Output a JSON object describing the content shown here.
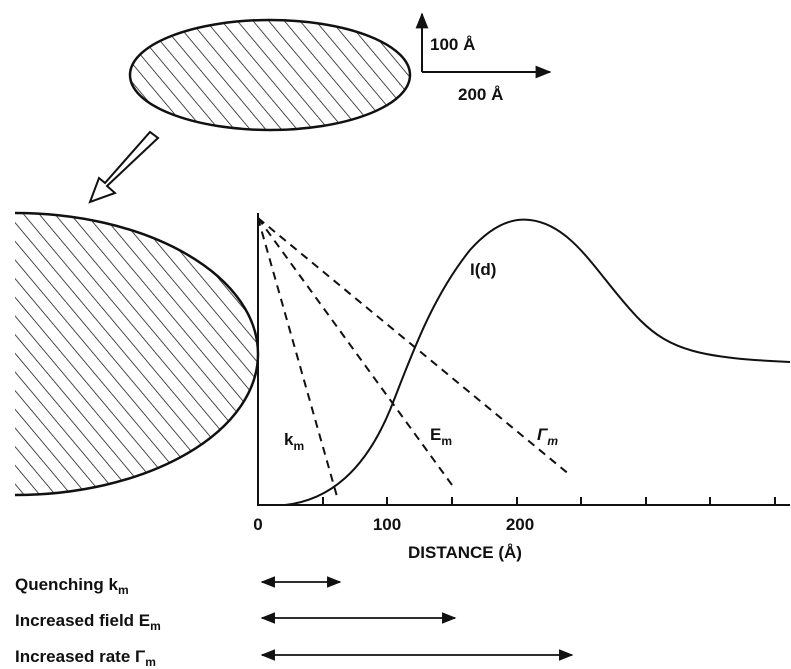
{
  "scale_bar": {
    "vertical": "100 Å",
    "horizontal": "200 Å"
  },
  "curve_label": "I(d)",
  "line_labels": [
    {
      "main": "k",
      "sub": "m"
    },
    {
      "main": "E",
      "sub": "m"
    },
    {
      "main": "Γ",
      "sub": "m"
    }
  ],
  "axis": {
    "ticks": [
      "0",
      "100",
      "200"
    ],
    "label": "DISTANCE (Å)"
  },
  "legend": [
    {
      "main": "Quenching k",
      "sub": "m"
    },
    {
      "main": "Increased field E",
      "sub": "m"
    },
    {
      "main": "Increased rate Γ",
      "sub": "m"
    }
  ]
}
